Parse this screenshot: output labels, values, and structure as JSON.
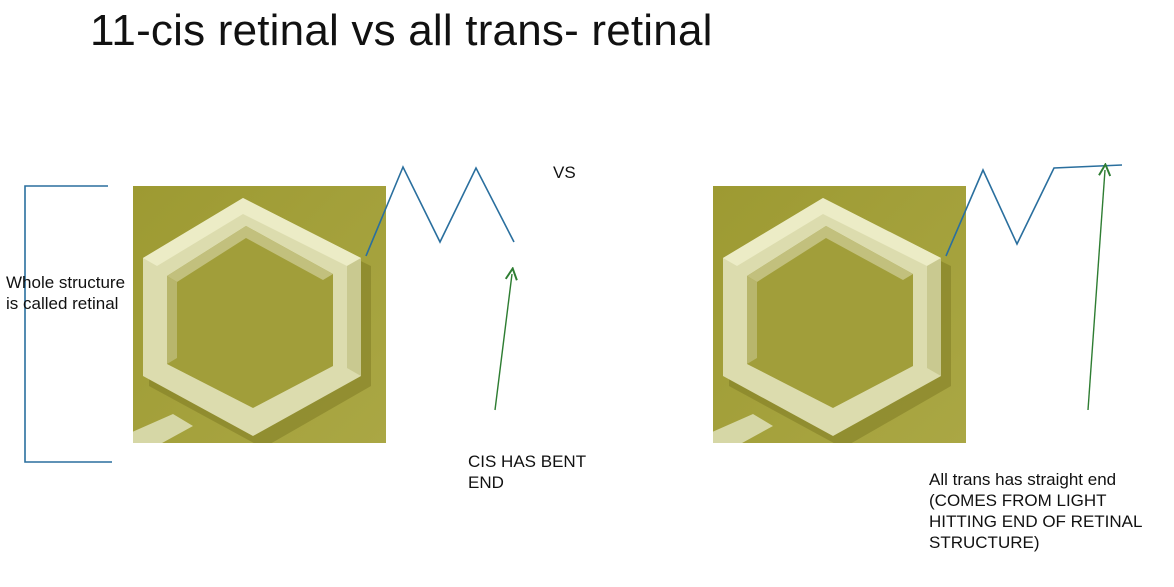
{
  "slide": {
    "title": "11-cis retinal vs all trans- retinal"
  },
  "labels": {
    "whole_structure": "Whole structure is called retinal",
    "vs": "VS",
    "cis_caption": "CIS HAS BENT END",
    "trans_caption": "All trans has straight end (COMES FROM LIGHT HITTING END OF RETINAL STRUCTURE)"
  },
  "colors": {
    "tile_background": "#a3a038",
    "ring_face": "#dfe0b4",
    "chain_line": "#2a6f9e",
    "arrow": "#2e7d32"
  }
}
